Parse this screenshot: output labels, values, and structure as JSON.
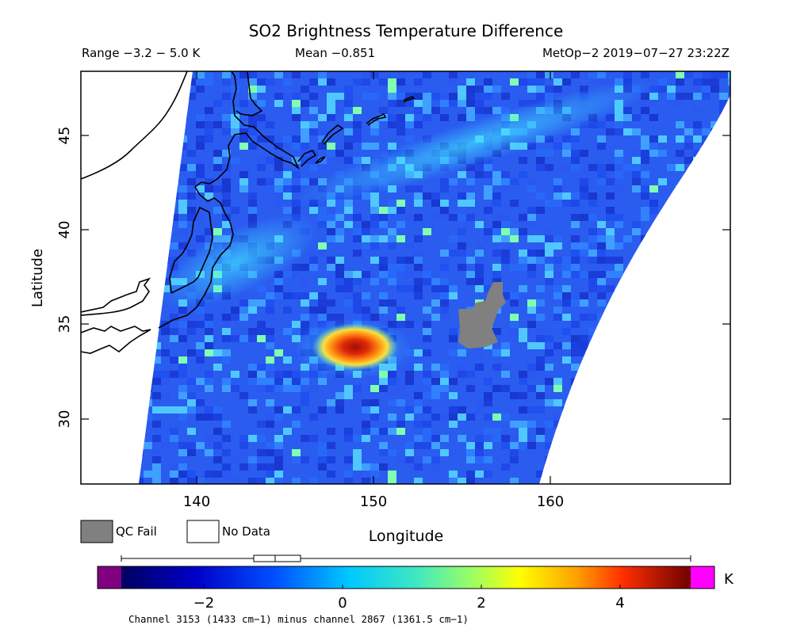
{
  "title": "SO2 Brightness Temperature Difference",
  "header": {
    "range": "Range −3.2 − 5.0 K",
    "mean": "Mean −0.851",
    "satellite": "MetOp−2 2019−07−27 23:22Z"
  },
  "axes": {
    "ylabel": "Latitude",
    "xlabel": "Longitude",
    "xticks": [
      "140",
      "150",
      "160"
    ],
    "yticks": [
      "30",
      "35",
      "40",
      "45"
    ]
  },
  "legend": {
    "qc_fail": "QC Fail",
    "no_data": "No Data",
    "qc_color": "#808080"
  },
  "colorbar": {
    "ticks": [
      "−2",
      "0",
      "2",
      "4"
    ],
    "unit": "K",
    "caption": "Channel 3153 (1433 cm−1) minus channel 2867 (1361.5 cm−1)"
  },
  "map_data": {
    "lon_range": [
      133.5,
      169.5
    ],
    "lat_range": [
      26.5,
      48.5
    ],
    "value_range": [
      -3.2,
      5.0
    ],
    "plume_center": {
      "lon": 148.5,
      "lat": 33.8,
      "max": 4.5
    },
    "qc_fail_region": {
      "lon": 155.5,
      "lat": 35.0
    }
  }
}
